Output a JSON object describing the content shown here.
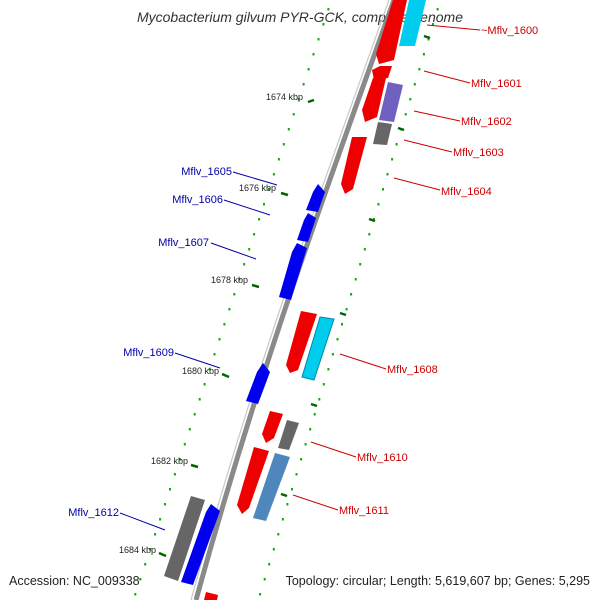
{
  "title": "Mycobacterium gilvum PYR-GCK, complete genome",
  "footer": {
    "accession": "Accession: NC_009338",
    "stats": "Topology: circular; Length: 5,619,607 bp; Genes: 5,295"
  },
  "colors": {
    "forward_label": "#cc0000",
    "reverse_label": "#0000aa",
    "backbone": "#808080",
    "tick": "#006600",
    "red_gene": "#ee0000",
    "blue_gene": "#0000ee",
    "cyan_gene": "#00ccee",
    "gray_gene": "#666666",
    "purple_gene": "#7060c0",
    "steel_gene": "#4f86bb"
  },
  "scale_labels": [
    "1674 kbp",
    "1676 kbp",
    "1678 kbp",
    "1680 kbp",
    "1682 kbp",
    "1684 kbp"
  ],
  "genes": [
    {
      "label": "~Mflv_1600",
      "strand": "forward",
      "color": "cyan"
    },
    {
      "label": "Mflv_1601",
      "strand": "forward",
      "color": "red"
    },
    {
      "label": "Mflv_1602",
      "strand": "forward",
      "color": "purple"
    },
    {
      "label": "Mflv_1603",
      "strand": "forward",
      "color": "gray"
    },
    {
      "label": "Mflv_1604",
      "strand": "forward",
      "color": "red"
    },
    {
      "label": "Mflv_1605",
      "strand": "reverse",
      "color": "blue"
    },
    {
      "label": "Mflv_1606",
      "strand": "reverse",
      "color": "blue"
    },
    {
      "label": "Mflv_1607",
      "strand": "reverse",
      "color": "blue"
    },
    {
      "label": "Mflv_1608",
      "strand": "forward",
      "color": "cyan"
    },
    {
      "label": "Mflv_1609",
      "strand": "reverse",
      "color": "blue"
    },
    {
      "label": "Mflv_1610",
      "strand": "forward",
      "color": "gray"
    },
    {
      "label": "Mflv_1611",
      "strand": "forward",
      "color": "steel"
    },
    {
      "label": "Mflv_1612",
      "strand": "reverse",
      "color": "gray"
    }
  ]
}
